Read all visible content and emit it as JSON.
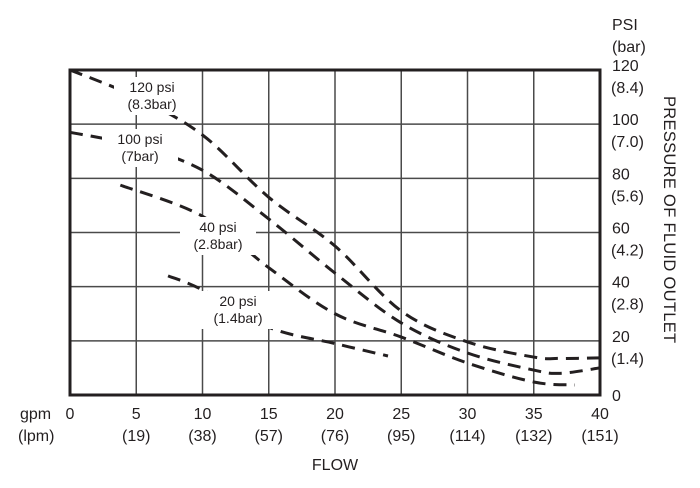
{
  "chart_data": {
    "type": "line",
    "xlabel": "FLOW",
    "ylabel": "PRESSURE OF FLUID OUTLET",
    "x_unit_labels": [
      "gpm",
      "(lpm)"
    ],
    "y_unit_labels": [
      "PSI",
      "(bar)"
    ],
    "xlim": [
      0,
      40
    ],
    "ylim": [
      0,
      120
    ],
    "grid": true,
    "x_ticks": [
      {
        "gpm": "0",
        "lpm": ""
      },
      {
        "gpm": "5",
        "lpm": "(19)"
      },
      {
        "gpm": "10",
        "lpm": "(38)"
      },
      {
        "gpm": "15",
        "lpm": "(57)"
      },
      {
        "gpm": "20",
        "lpm": "(76)"
      },
      {
        "gpm": "25",
        "lpm": "(95)"
      },
      {
        "gpm": "30",
        "lpm": "(114)"
      },
      {
        "gpm": "35",
        "lpm": "(132)"
      },
      {
        "gpm": "40",
        "lpm": "(151)"
      }
    ],
    "y_ticks": [
      {
        "psi": "0",
        "bar": ""
      },
      {
        "psi": "20",
        "bar": "(1.4)"
      },
      {
        "psi": "40",
        "bar": "(2.8)"
      },
      {
        "psi": "60",
        "bar": "(4.2)"
      },
      {
        "psi": "80",
        "bar": "(5.6)"
      },
      {
        "psi": "100",
        "bar": "(7.0)"
      },
      {
        "psi": "120",
        "bar": "(8.4)"
      }
    ],
    "series": [
      {
        "name": "120 psi",
        "sub": "(8.3bar)",
        "x": [
          0,
          5,
          10,
          15,
          20,
          25,
          30,
          35,
          37,
          40
        ],
        "y": [
          120,
          110,
          96,
          73,
          55,
          31,
          19.6,
          14,
          13.5,
          13.7
        ]
      },
      {
        "name": "100 psi",
        "sub": "(7bar)",
        "x": [
          0,
          5,
          10,
          15,
          20,
          25,
          30,
          35,
          37,
          40
        ],
        "y": [
          97,
          92,
          83,
          65,
          45,
          26.6,
          15.5,
          9.2,
          8,
          10
        ]
      },
      {
        "name": "40 psi",
        "sub": "(2.8bar)",
        "x": [
          3.8,
          10,
          15,
          20,
          25,
          30,
          35,
          38.1
        ],
        "y": [
          77.5,
          66,
          47,
          30,
          21.4,
          11.8,
          4.8,
          3.7
        ]
      },
      {
        "name": "20 psi",
        "sub": "(1.4bar)",
        "x": [
          7.4,
          10,
          15,
          20,
          24
        ],
        "y": [
          44,
          38.8,
          25,
          19,
          14.4
        ]
      }
    ]
  }
}
